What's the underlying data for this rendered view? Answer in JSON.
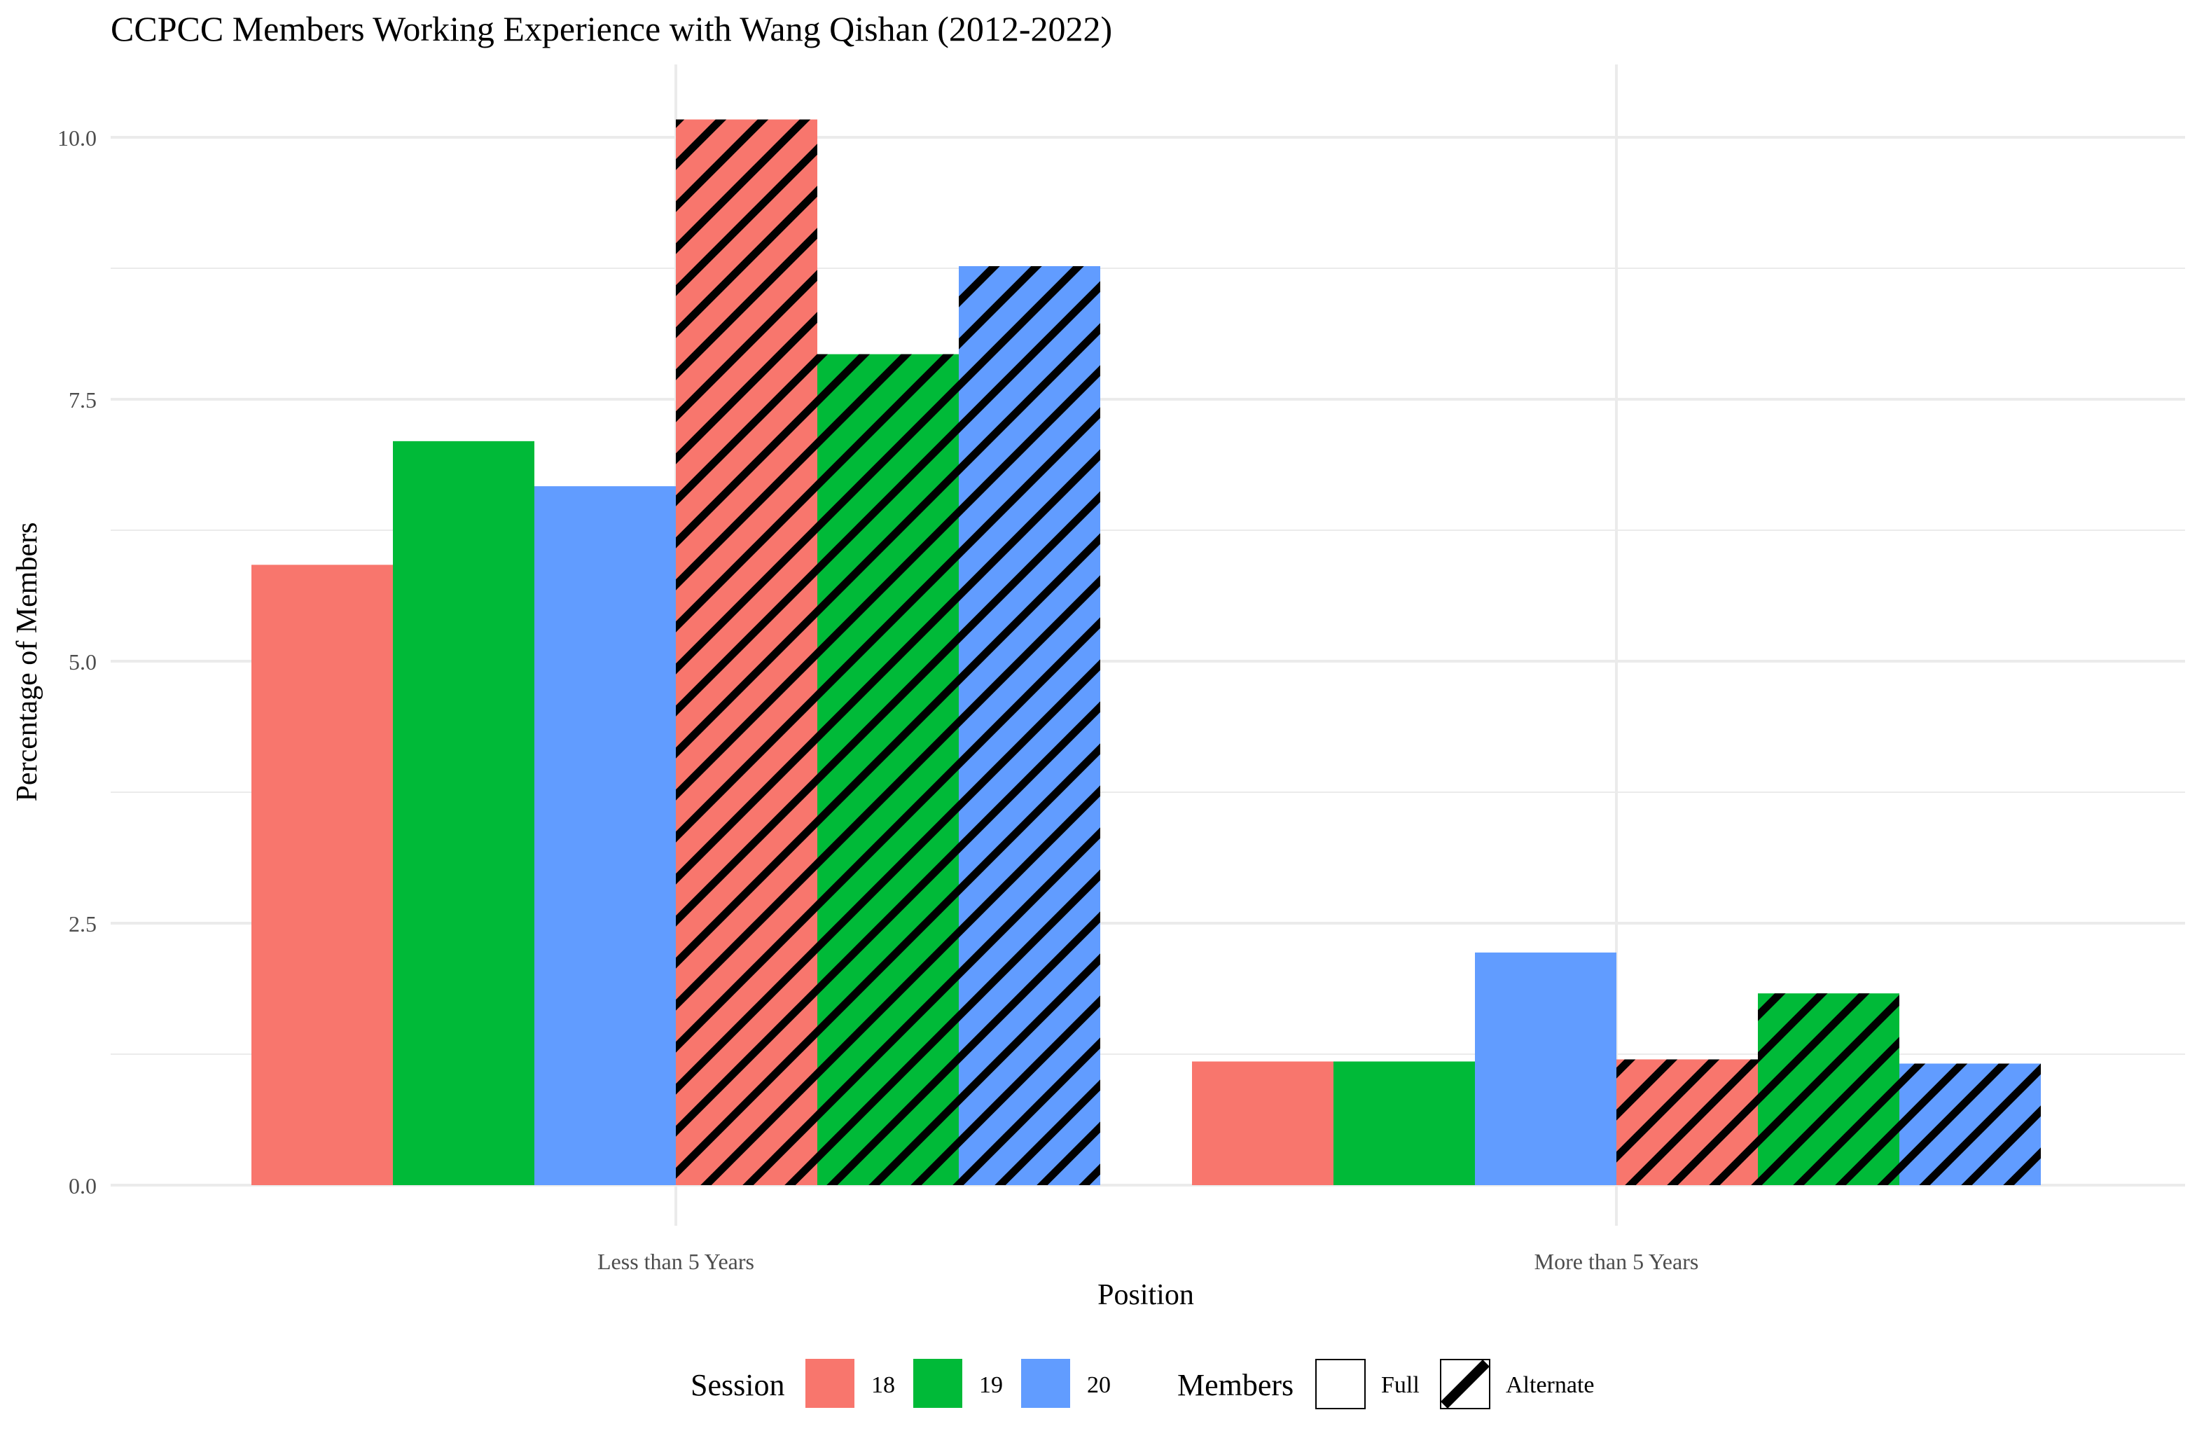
{
  "chart_data": {
    "type": "bar",
    "title": "CCPCC Members Working Experience with Wang Qishan (2012-2022)",
    "xlabel": "Position",
    "ylabel": "Percentage of Members",
    "categories": [
      "Less than 5 Years",
      "More than 5 Years"
    ],
    "ylim": [
      0,
      10.4
    ],
    "yticks": [
      0.0,
      2.5,
      5.0,
      7.5,
      10.0
    ],
    "ytick_labels": [
      "0.0",
      "2.5",
      "5.0",
      "7.5",
      "10.0"
    ],
    "grid": true,
    "legend_position": "bottom",
    "series": [
      {
        "name": "18",
        "session": "18",
        "members": "Full",
        "color": "#F8766D",
        "pattern": "none",
        "values": [
          5.92,
          1.18
        ]
      },
      {
        "name": "19",
        "session": "19",
        "members": "Full",
        "color": "#00BA38",
        "pattern": "none",
        "values": [
          7.1,
          1.18
        ]
      },
      {
        "name": "20",
        "session": "20",
        "members": "Full",
        "color": "#619CFF",
        "pattern": "none",
        "values": [
          6.67,
          2.22
        ]
      },
      {
        "name": "18",
        "session": "18",
        "members": "Alternate",
        "color": "#F8766D",
        "pattern": "stripe",
        "values": [
          10.17,
          1.2
        ]
      },
      {
        "name": "19",
        "session": "19",
        "members": "Alternate",
        "color": "#00BA38",
        "pattern": "stripe",
        "values": [
          7.93,
          1.83
        ]
      },
      {
        "name": "20",
        "session": "20",
        "members": "Alternate",
        "color": "#619CFF",
        "pattern": "stripe",
        "values": [
          8.77,
          1.16
        ]
      }
    ],
    "legend": {
      "session_title": "Session",
      "session_items": [
        {
          "label": "18",
          "color": "#F8766D"
        },
        {
          "label": "19",
          "color": "#00BA38"
        },
        {
          "label": "20",
          "color": "#619CFF"
        }
      ],
      "members_title": "Members",
      "members_items": [
        {
          "label": "Full",
          "pattern": "none"
        },
        {
          "label": "Alternate",
          "pattern": "stripe"
        }
      ]
    }
  }
}
